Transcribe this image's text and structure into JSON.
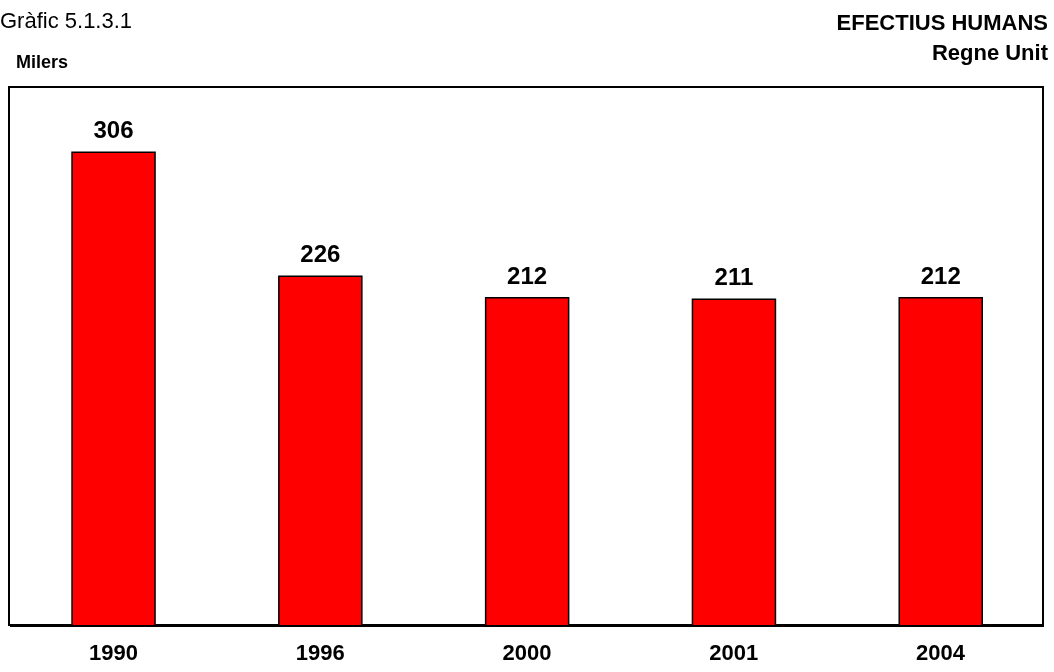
{
  "chart_data": {
    "type": "bar",
    "title": "EFECTIUS HUMANS",
    "subtitle": "Regne Unit",
    "ylabel": "Milers",
    "annotations": [
      "Gràfic 5.1.3.1"
    ],
    "categories": [
      "1990",
      "1996",
      "2000",
      "2001",
      "2004"
    ],
    "values": [
      306,
      226,
      212,
      211,
      212
    ],
    "color": "#ff0000",
    "data_labels": true
  }
}
